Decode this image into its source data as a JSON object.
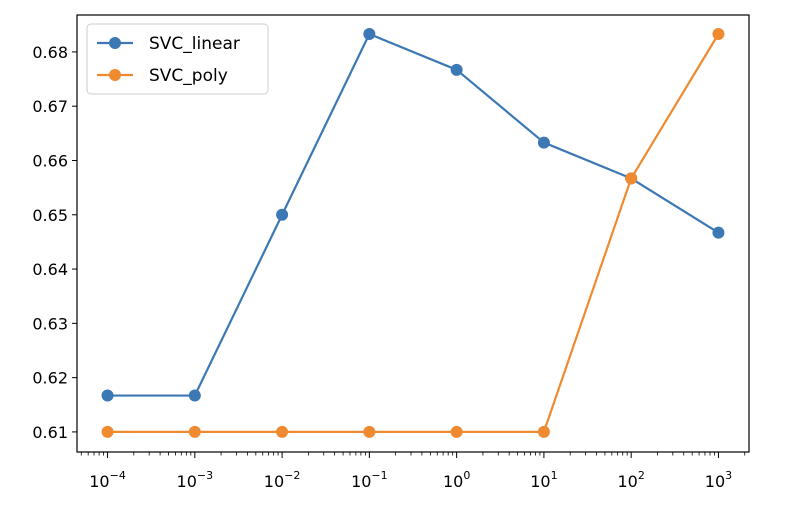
{
  "chart_data": {
    "type": "line",
    "x_scale": "log",
    "x": [
      0.0001,
      0.001,
      0.01,
      0.1,
      1,
      10,
      100,
      1000
    ],
    "x_tick_labels": [
      {
        "base": "10",
        "exp": "−4"
      },
      {
        "base": "10",
        "exp": "−3"
      },
      {
        "base": "10",
        "exp": "−2"
      },
      {
        "base": "10",
        "exp": "−1"
      },
      {
        "base": "10",
        "exp": "0"
      },
      {
        "base": "10",
        "exp": "1"
      },
      {
        "base": "10",
        "exp": "2"
      },
      {
        "base": "10",
        "exp": "3"
      }
    ],
    "y_ticks": [
      "0.61",
      "0.62",
      "0.63",
      "0.64",
      "0.65",
      "0.66",
      "0.67",
      "0.68"
    ],
    "y_tick_values": [
      0.61,
      0.62,
      0.63,
      0.64,
      0.65,
      0.66,
      0.67,
      0.68
    ],
    "ylim": [
      0.6063,
      0.6868
    ],
    "xlim_decades": [
      -4.35,
      3.35
    ],
    "grid": false,
    "legend_position": "upper-left",
    "title": "",
    "xlabel": "",
    "ylabel": "",
    "series": [
      {
        "name": "SVC_linear",
        "color": "#3c78b4",
        "values": [
          0.6167,
          0.6167,
          0.65,
          0.6833,
          0.6767,
          0.6633,
          0.6567,
          0.6467
        ]
      },
      {
        "name": "SVC_poly",
        "color": "#f08a30",
        "values": [
          0.61,
          0.61,
          0.61,
          0.61,
          0.61,
          0.61,
          0.6567,
          0.6833
        ]
      }
    ]
  }
}
